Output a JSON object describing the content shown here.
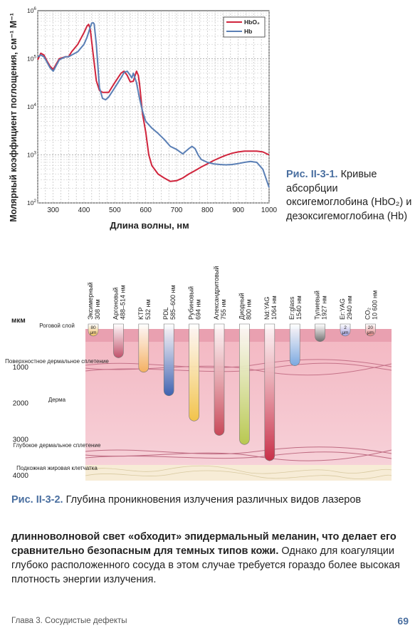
{
  "figure1": {
    "chart_data": {
      "type": "line",
      "ylabel": "Молярный коэффициент поглощения, см⁻¹ M⁻¹",
      "xlabel": "Длина волны, нм",
      "x_ticks": [
        "300",
        "400",
        "500",
        "600",
        "700",
        "800",
        "900",
        "1000"
      ],
      "y_ticks": [
        {
          "base": "10",
          "exp": "2"
        },
        {
          "base": "10",
          "exp": "3"
        },
        {
          "base": "10",
          "exp": "4"
        },
        {
          "base": "10",
          "exp": "5"
        },
        {
          "base": "10",
          "exp": "6"
        }
      ],
      "xlim": [
        250,
        1000
      ],
      "ylim": [
        100,
        1000000
      ],
      "log_y": true,
      "grid": true,
      "legend_position": "top-right",
      "series": [
        {
          "name": "HbO₂",
          "color": "#d0243c",
          "x": [
            250,
            260,
            270,
            280,
            290,
            300,
            320,
            340,
            350,
            360,
            380,
            400,
            410,
            415,
            420,
            430,
            440,
            450,
            460,
            480,
            500,
            520,
            530,
            540,
            550,
            560,
            570,
            576,
            580,
            590,
            600,
            610,
            620,
            640,
            660,
            680,
            700,
            720,
            740,
            760,
            780,
            800,
            820,
            840,
            860,
            880,
            900,
            920,
            940,
            960,
            980,
            1000
          ],
          "y": [
            95000,
            130000,
            120000,
            90000,
            70000,
            60000,
            100000,
            110000,
            110000,
            140000,
            200000,
            350000,
            480000,
            520000,
            420000,
            120000,
            35000,
            22000,
            20000,
            20000,
            32000,
            50000,
            55000,
            45000,
            33000,
            34000,
            55000,
            45000,
            30000,
            7000,
            3000,
            1000,
            600,
            400,
            330,
            280,
            290,
            330,
            400,
            470,
            560,
            650,
            760,
            870,
            980,
            1080,
            1150,
            1200,
            1200,
            1200,
            1150,
            1000
          ]
        },
        {
          "name": "Hb",
          "color": "#5a7fb5",
          "x": [
            250,
            260,
            270,
            280,
            290,
            300,
            320,
            340,
            350,
            360,
            380,
            400,
            410,
            420,
            425,
            430,
            433,
            440,
            450,
            460,
            470,
            480,
            500,
            520,
            530,
            540,
            550,
            555,
            560,
            570,
            580,
            590,
            600,
            620,
            640,
            660,
            680,
            700,
            720,
            740,
            750,
            760,
            770,
            780,
            800,
            820,
            840,
            860,
            880,
            900,
            920,
            940,
            960,
            980,
            1000
          ],
          "y": [
            110000,
            120000,
            110000,
            85000,
            65000,
            55000,
            95000,
            110000,
            110000,
            120000,
            140000,
            200000,
            280000,
            450000,
            550000,
            560000,
            530000,
            200000,
            25000,
            15000,
            14000,
            16000,
            25000,
            40000,
            52000,
            55000,
            45000,
            40000,
            50000,
            32000,
            15000,
            8000,
            5000,
            3600,
            2800,
            2100,
            1500,
            1300,
            1050,
            1350,
            1500,
            1350,
            1000,
            800,
            700,
            650,
            630,
            620,
            630,
            660,
            700,
            730,
            700,
            500,
            210
          ]
        }
      ]
    },
    "caption_label": "Рис. II-3-1.",
    "caption_text": "Кривые абсорбции оксигемоглобина (HbO₂) и дезоксигемоглобина (Hb)"
  },
  "figure2": {
    "axis_unit": "мкм",
    "depth_ticks": [
      "1000",
      "2000",
      "3000",
      "4000"
    ],
    "layers": [
      {
        "label": "Роговой слой"
      },
      {
        "label": "Поверхностное дермальное сплетение"
      },
      {
        "label": "Дерма"
      },
      {
        "label": "Глубокое дермальное сплетение"
      },
      {
        "label": "Подкожная жировая клетчатка"
      }
    ],
    "lasers": [
      {
        "name": "Эксимерный",
        "wl": "308 нм",
        "depth": 80,
        "color": "#f0c060",
        "badge": "80 μm"
      },
      {
        "name": "Аргоновый",
        "wl": "488–514 нм",
        "depth": 700,
        "color": "#c0506a"
      },
      {
        "name": "KTP",
        "wl": "532 нм",
        "depth": 1100,
        "color": "#f4b060"
      },
      {
        "name": "PDL",
        "wl": "585–600 нм",
        "depth": 1750,
        "color": "#3e62b0"
      },
      {
        "name": "Рубиновый",
        "wl": "694 нм",
        "depth": 2450,
        "color": "#f2c34a"
      },
      {
        "name": "Александритовый",
        "wl": "755 нм",
        "depth": 2850,
        "color": "#c84858"
      },
      {
        "name": "Диодный",
        "wl": "800 нм",
        "depth": 3100,
        "color": "#b8c850"
      },
      {
        "name": "Nd:YAG",
        "wl": "1064 нм",
        "depth": 3550,
        "color": "#c83048"
      },
      {
        "name": "Er:glass",
        "wl": "1540 нм",
        "depth": 920,
        "color": "#7aa8e0"
      },
      {
        "name": "Тулиевый",
        "wl": "1927 нм",
        "depth": 250,
        "color": "#707070"
      },
      {
        "name": "Er:YAG",
        "wl": "2940 нм",
        "depth": 2,
        "color": "#a0a0e0",
        "badge": "2 μm"
      },
      {
        "name": "CO₂",
        "wl": "10 600 нм",
        "depth": 20,
        "color": "#e08080",
        "badge": "20 μm"
      }
    ],
    "caption_label": "Рис. II-3-2.",
    "caption_text": "Глубина проникновения излучения различных видов лазеров"
  },
  "body": {
    "bold": "длинноволновой свет «обходит» эпидермальный меланин, что делает его сравнительно безопасным для темных типов кожи.",
    "normal": "Однако для коагуляции глубоко расположенного сосуда в этом случае требуется гораздо более высокая плотность энергии излучения."
  },
  "footer": {
    "chapter": "Глава 3. Сосудистые дефекты",
    "page": "69"
  }
}
